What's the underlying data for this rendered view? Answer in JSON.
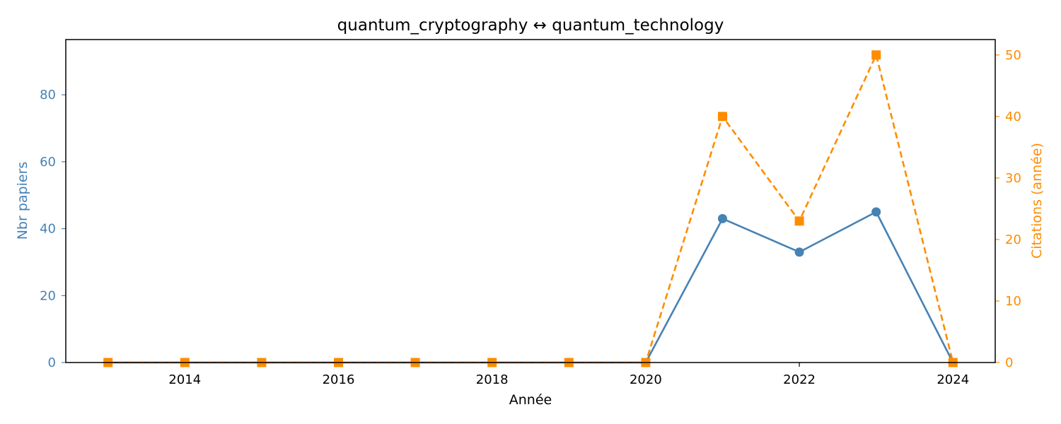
{
  "chart_data": {
    "type": "line",
    "title": "quantum_cryptography  ↔  quantum_technology",
    "xlabel": "Année",
    "ylabel_left": "Nbr papiers",
    "ylabel_right": "Citations (année)",
    "x": [
      2013,
      2014,
      2015,
      2016,
      2017,
      2018,
      2019,
      2020,
      2021,
      2022,
      2023,
      2024
    ],
    "xlim": [
      2012.45,
      2024.55
    ],
    "xticks": [
      2014,
      2016,
      2018,
      2020,
      2022,
      2024
    ],
    "ylim_left": [
      0,
      96.5
    ],
    "yticks_left": [
      0,
      20,
      40,
      60,
      80
    ],
    "ylim_right": [
      0,
      52.5
    ],
    "yticks_right": [
      0,
      10,
      20,
      30,
      40,
      50
    ],
    "grid": false,
    "series": [
      {
        "key": "papers",
        "axis": "left",
        "values": [
          0,
          0,
          0,
          0,
          0,
          0,
          0,
          0,
          43,
          33,
          45,
          0
        ],
        "color": "#4682b4",
        "style": "solid",
        "marker": "circle"
      },
      {
        "key": "citations",
        "axis": "right",
        "values": [
          0,
          0,
          0,
          0,
          0,
          0,
          0,
          0,
          40,
          23,
          50,
          0
        ],
        "color": "#ff8c00",
        "style": "dashed",
        "marker": "square"
      }
    ]
  }
}
